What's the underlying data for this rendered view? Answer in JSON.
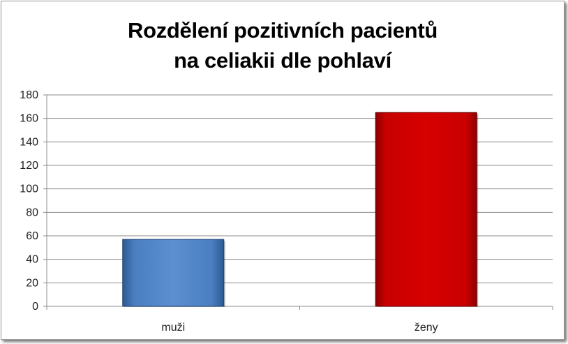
{
  "chart_data": {
    "type": "bar",
    "title_lines": [
      "Rozdělení pozitivních pacientů",
      "na celiakii dle pohlaví"
    ],
    "categories": [
      "muži",
      "ženy"
    ],
    "values": [
      57,
      165
    ],
    "colors": [
      "#4F81BD",
      "#C00000"
    ],
    "ylim": [
      0,
      180
    ],
    "ytick_step": 20,
    "yticks": [
      "0",
      "20",
      "40",
      "60",
      "80",
      "100",
      "120",
      "140",
      "160",
      "180"
    ],
    "grid": true,
    "legend": false
  }
}
